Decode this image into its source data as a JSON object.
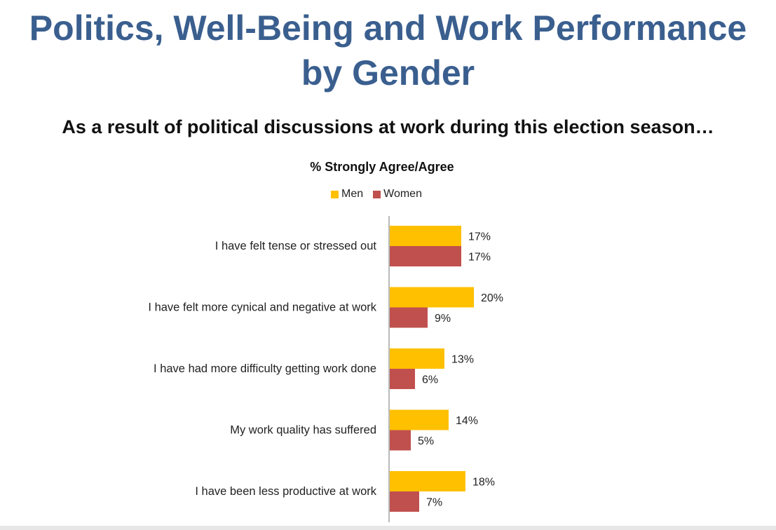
{
  "slide": {
    "title_line1": "Politics, Well-Being and Work Performance",
    "title_line2": "by Gender",
    "subtitle": "As a result of political discussions at work during this election season…"
  },
  "colors": {
    "title": "#3a5f8f",
    "men": "#ffc000",
    "women": "#c0504d"
  },
  "chart_data": {
    "type": "bar",
    "orientation": "horizontal",
    "title": "% Strongly Agree/Agree",
    "legend": [
      "Men",
      "Women"
    ],
    "legend_position": "top",
    "categories": [
      "I have felt tense or stressed out",
      "I have felt more cynical and negative at work",
      "I have had more difficulty getting work done",
      "My work quality has suffered",
      "I have been less productive at work"
    ],
    "series": [
      {
        "name": "Men",
        "values": [
          17,
          20,
          13,
          14,
          18
        ],
        "labels": [
          "17%",
          "20%",
          "13%",
          "14%",
          "18%"
        ]
      },
      {
        "name": "Women",
        "values": [
          17,
          9,
          6,
          5,
          7
        ],
        "labels": [
          "17%",
          "9%",
          "6%",
          "5%",
          "7%"
        ]
      }
    ],
    "xlim": [
      0,
      100
    ],
    "grid": false
  }
}
